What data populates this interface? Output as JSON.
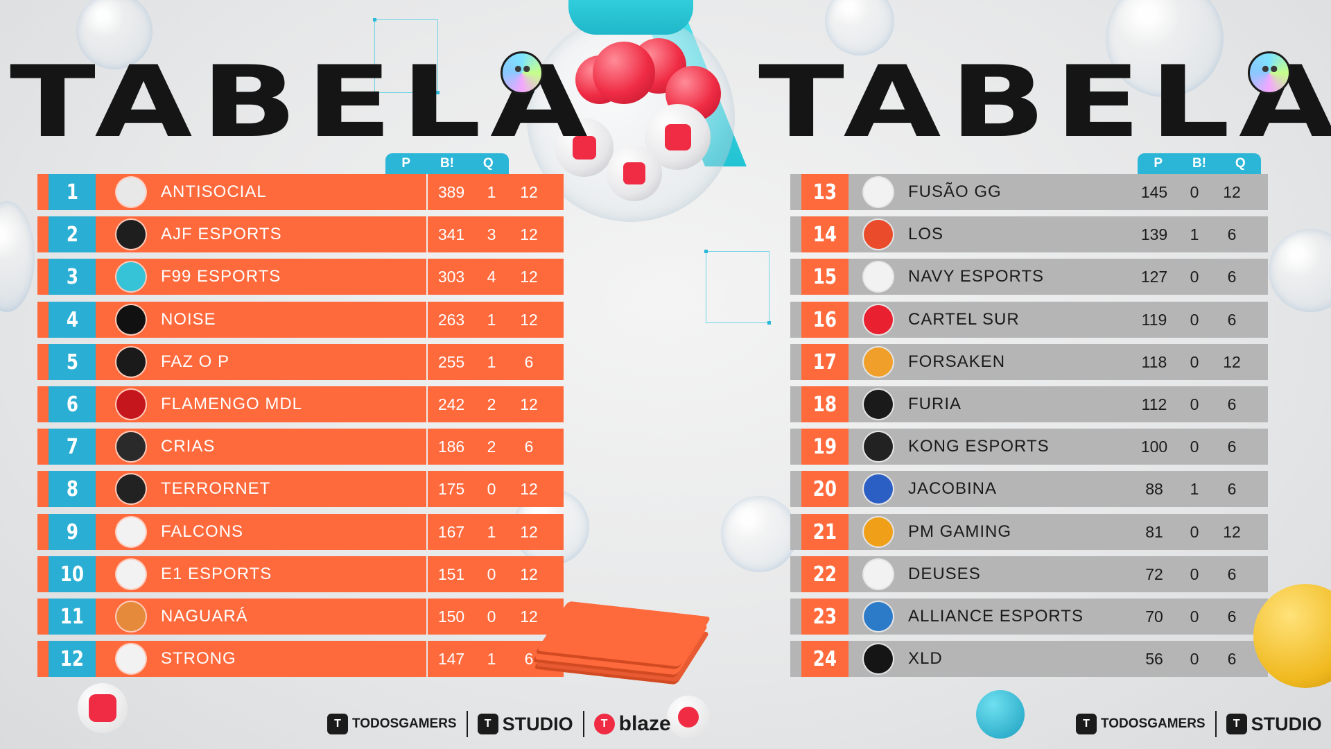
{
  "header": {
    "title_left": "TABELA",
    "title_right": "TABELA"
  },
  "table_headers": {
    "points": "P",
    "booyahs": "B!",
    "matches": "Q"
  },
  "colors": {
    "accent_orange": "#ff6a3d",
    "accent_cyan": "#2bb5d6",
    "gray_row": "#b5b5b5"
  },
  "standings_left": [
    {
      "rank": "1",
      "team": "ANTISOCIAL",
      "p": "389",
      "b": "1",
      "q": "12",
      "logo_color": "#e8e8e8",
      "logo_icon": "skull-logo-icon"
    },
    {
      "rank": "2",
      "team": "AJF ESPORTS",
      "p": "341",
      "b": "3",
      "q": "12",
      "logo_color": "#1e1e1e",
      "logo_icon": "ajf-logo-icon"
    },
    {
      "rank": "3",
      "team": "F99 ESPORTS",
      "p": "303",
      "b": "4",
      "q": "12",
      "logo_color": "#36c3d8",
      "logo_icon": "f99-logo-icon"
    },
    {
      "rank": "4",
      "team": "NOISE",
      "p": "263",
      "b": "1",
      "q": "12",
      "logo_color": "#111111",
      "logo_icon": "noise-logo-icon"
    },
    {
      "rank": "5",
      "team": "FAZ O P",
      "p": "255",
      "b": "1",
      "q": "6",
      "logo_color": "#1a1a1a",
      "logo_icon": "fazop-logo-icon"
    },
    {
      "rank": "6",
      "team": "FLAMENGO MDL",
      "p": "242",
      "b": "2",
      "q": "12",
      "logo_color": "#c4161c",
      "logo_icon": "flamengo-logo-icon"
    },
    {
      "rank": "7",
      "team": "CRIAS",
      "p": "186",
      "b": "2",
      "q": "6",
      "logo_color": "#2a2a2a",
      "logo_icon": "crias-logo-icon"
    },
    {
      "rank": "8",
      "team": "TERRORNET",
      "p": "175",
      "b": "0",
      "q": "12",
      "logo_color": "#222222",
      "logo_icon": "terrornet-logo-icon"
    },
    {
      "rank": "9",
      "team": "FALCONS",
      "p": "167",
      "b": "1",
      "q": "12",
      "logo_color": "#f2f2f2",
      "logo_icon": "falcons-logo-icon"
    },
    {
      "rank": "10",
      "team": "E1 ESPORTS",
      "p": "151",
      "b": "0",
      "q": "12",
      "logo_color": "#f2f2f2",
      "logo_icon": "e1-logo-icon"
    },
    {
      "rank": "11",
      "team": "NAGUARÁ",
      "p": "150",
      "b": "0",
      "q": "12",
      "logo_color": "#e48a3a",
      "logo_icon": "naguara-logo-icon"
    },
    {
      "rank": "12",
      "team": "STRONG",
      "p": "147",
      "b": "1",
      "q": "6",
      "logo_color": "#f2f2f2",
      "logo_icon": "strong-logo-icon"
    }
  ],
  "standings_right": [
    {
      "rank": "13",
      "team": "FUSÃO GG",
      "p": "145",
      "b": "0",
      "q": "12",
      "logo_color": "#f2f2f2",
      "logo_icon": "fusao-logo-icon"
    },
    {
      "rank": "14",
      "team": "LOS",
      "p": "139",
      "b": "1",
      "q": "6",
      "logo_color": "#e94b2b",
      "logo_icon": "los-logo-icon"
    },
    {
      "rank": "15",
      "team": "NAVY ESPORTS",
      "p": "127",
      "b": "0",
      "q": "6",
      "logo_color": "#f2f2f2",
      "logo_icon": "navy-logo-icon"
    },
    {
      "rank": "16",
      "team": "CARTEL SUR",
      "p": "119",
      "b": "0",
      "q": "6",
      "logo_color": "#e8202f",
      "logo_icon": "cartel-logo-icon"
    },
    {
      "rank": "17",
      "team": "FORSAKEN",
      "p": "118",
      "b": "0",
      "q": "12",
      "logo_color": "#f0a02a",
      "logo_icon": "forsaken-logo-icon"
    },
    {
      "rank": "18",
      "team": "FURIA",
      "p": "112",
      "b": "0",
      "q": "6",
      "logo_color": "#1a1a1a",
      "logo_icon": "furia-logo-icon"
    },
    {
      "rank": "19",
      "team": "KONG ESPORTS",
      "p": "100",
      "b": "0",
      "q": "6",
      "logo_color": "#222222",
      "logo_icon": "kong-logo-icon"
    },
    {
      "rank": "20",
      "team": "JACOBINA",
      "p": "88",
      "b": "1",
      "q": "6",
      "logo_color": "#2b5fc4",
      "logo_icon": "jacobina-logo-icon"
    },
    {
      "rank": "21",
      "team": "PM GAMING",
      "p": "81",
      "b": "0",
      "q": "12",
      "logo_color": "#f0a018",
      "logo_icon": "pm-logo-icon"
    },
    {
      "rank": "22",
      "team": "DEUSES",
      "p": "72",
      "b": "0",
      "q": "6",
      "logo_color": "#f2f2f2",
      "logo_icon": "deuses-logo-icon"
    },
    {
      "rank": "23",
      "team": "ALLIANCE ESPORTS",
      "p": "70",
      "b": "0",
      "q": "6",
      "logo_color": "#2c7bc8",
      "logo_icon": "alliance-logo-icon"
    },
    {
      "rank": "24",
      "team": "XLD",
      "p": "56",
      "b": "0",
      "q": "6",
      "logo_color": "#151515",
      "logo_icon": "xld-logo-icon"
    }
  ],
  "sponsors_center": [
    {
      "label": "TODOSGAMERS",
      "icon": "todosgamers-icon"
    },
    {
      "label": "STUDIO",
      "icon": "studio-icon"
    },
    {
      "label": "blaze",
      "icon": "blaze-icon"
    }
  ],
  "sponsors_right": [
    {
      "label": "TODOSGAMERS",
      "icon": "todosgamers-icon"
    },
    {
      "label": "STUDIO",
      "icon": "studio-icon"
    }
  ]
}
